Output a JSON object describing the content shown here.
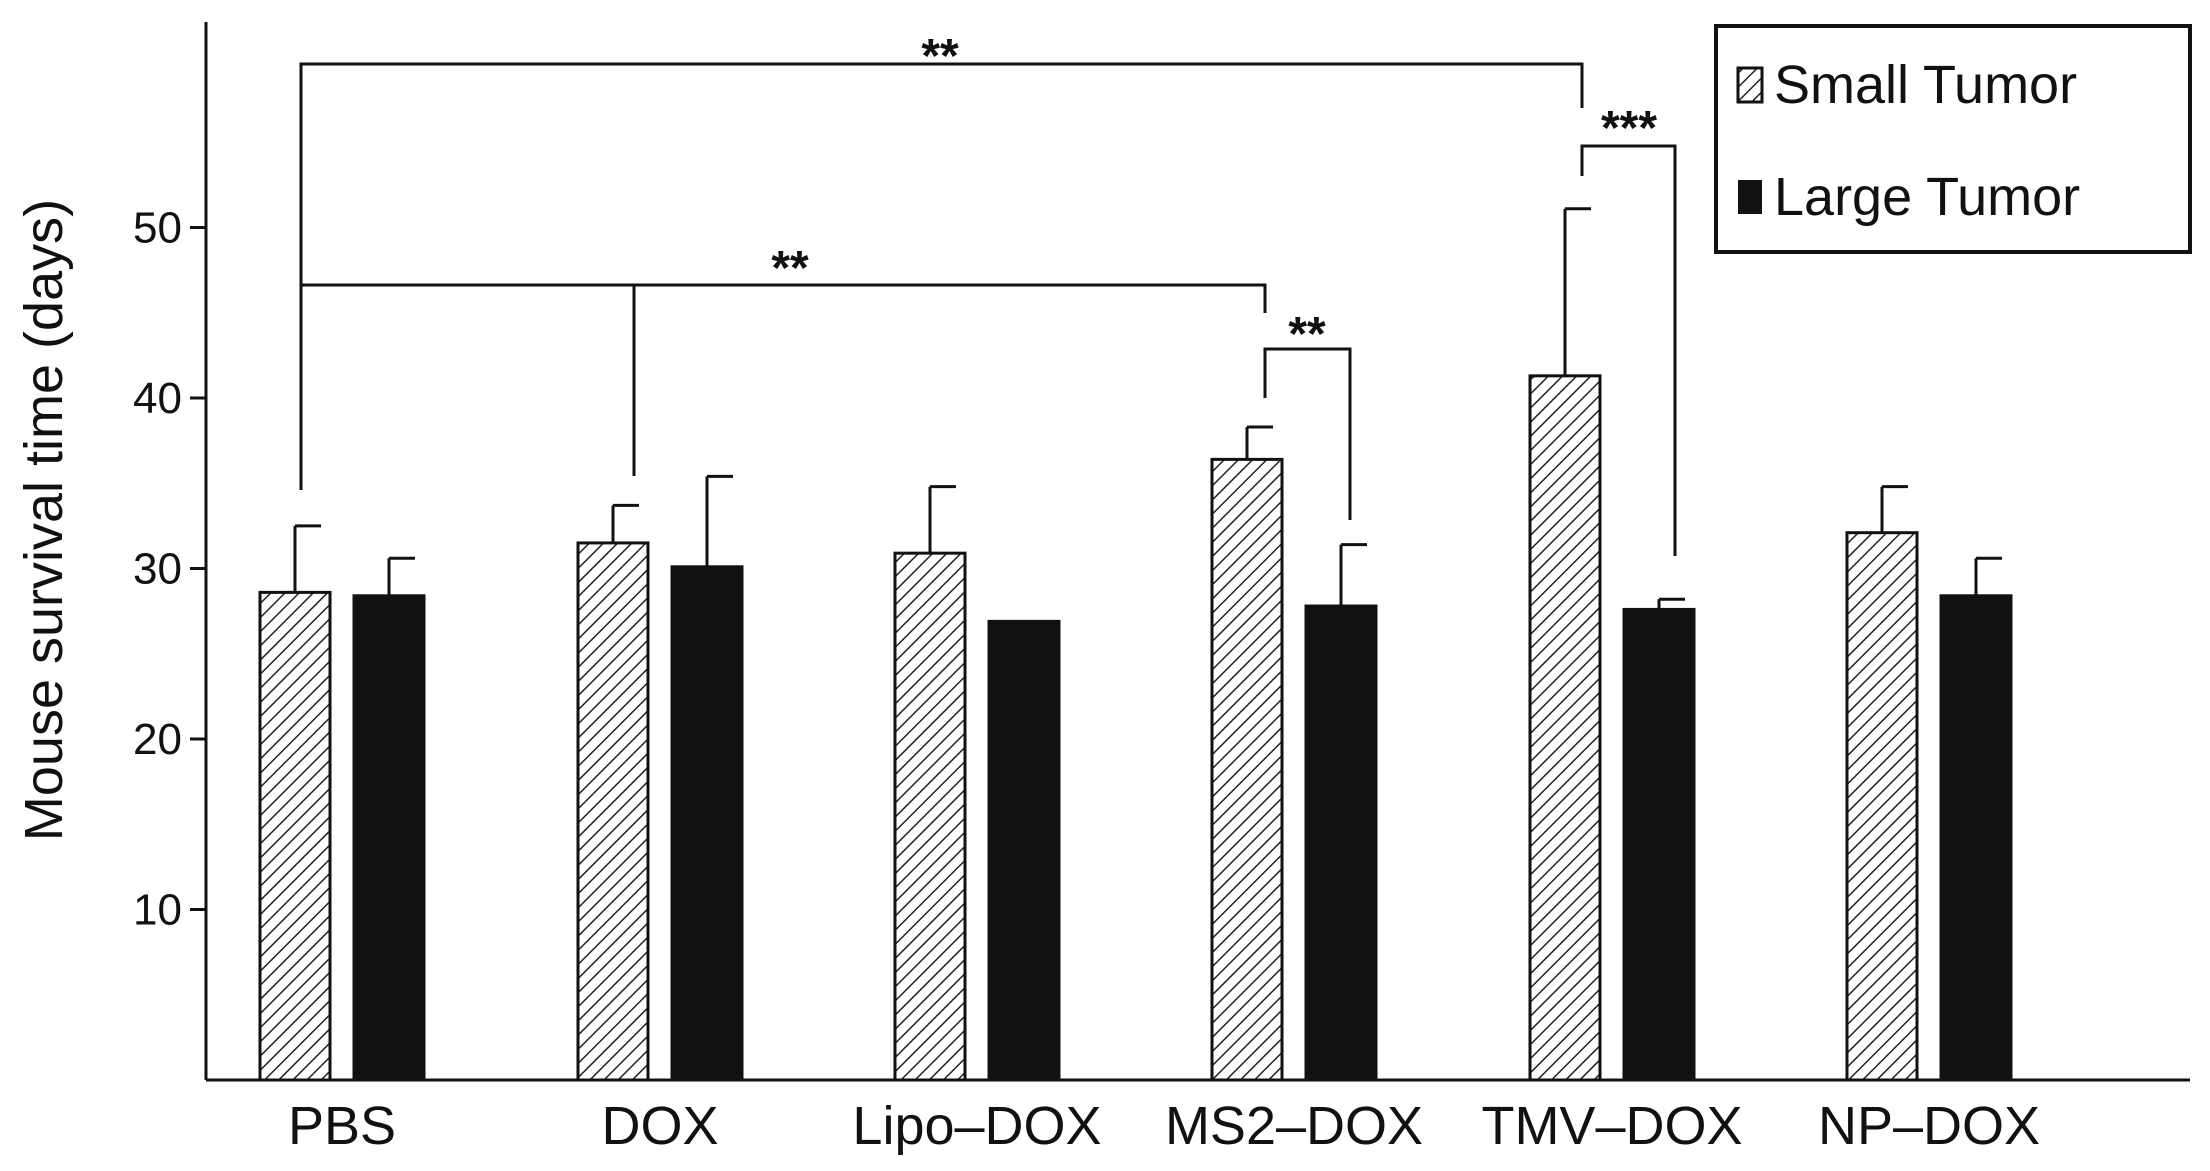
{
  "chart_data": {
    "type": "bar",
    "title": "",
    "xlabel": "",
    "ylabel": "Mouse survival time (days)",
    "ylim": [
      0,
      60
    ],
    "yticks": [
      10,
      20,
      30,
      40,
      50
    ],
    "grid": false,
    "legend_position": "top-right",
    "categories": [
      "PBS",
      "DOX",
      "Lipo–DOX",
      "MS2–DOX",
      "TMV–DOX",
      "NP–DOX"
    ],
    "series": [
      {
        "name": "Small Tumor",
        "pattern": "hatched",
        "values": [
          28.6,
          31.5,
          30.9,
          36.4,
          41.3,
          32.1
        ],
        "errors": [
          3.9,
          2.2,
          3.9,
          1.9,
          9.8,
          2.7
        ]
      },
      {
        "name": "Large Tumor",
        "pattern": "solid",
        "values": [
          28.4,
          30.1,
          26.9,
          27.8,
          27.6,
          28.4
        ],
        "errors": [
          2.2,
          5.3,
          0.0,
          3.6,
          0.6,
          2.2
        ]
      }
    ],
    "annotations": [
      {
        "text": "**",
        "from": "PBS Small Tumor",
        "to": "TMV–DOX Small Tumor"
      },
      {
        "text": "***",
        "from": "TMV–DOX Small Tumor",
        "to": "TMV–DOX Large Tumor"
      },
      {
        "text": "**",
        "from": "PBS and DOX Small Tumor",
        "to": "MS2–DOX Small Tumor"
      },
      {
        "text": "**",
        "from": "MS2–DOX Small Tumor",
        "to": "MS2–DOX Large Tumor"
      }
    ],
    "colors": {
      "solid_bar": "#111111",
      "hatched_bar_fill": "#ffffff",
      "hatch": "#222222",
      "axis": "#111111"
    }
  }
}
